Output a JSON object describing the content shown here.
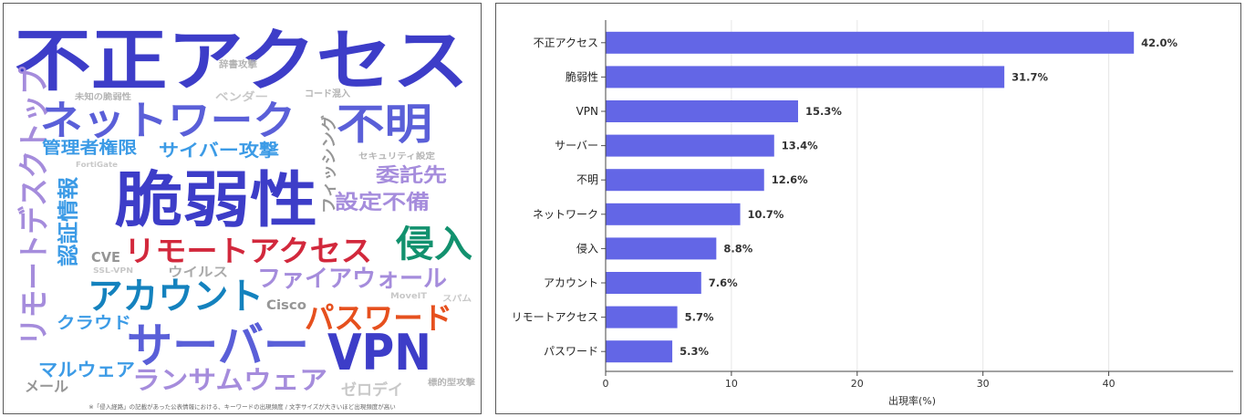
{
  "wordcloud": {
    "note": "※「侵入経路」の記載があった公表情報における、キーワードの出現頻度 / 文字サイズが大きいほど出現頻度が高い",
    "words": [
      {
        "text": "不正アクセス",
        "color": "#3d3dc8"
      },
      {
        "text": "ネットワーク",
        "color": "#5a5fd8"
      },
      {
        "text": "不明",
        "color": "#5a5fd8"
      },
      {
        "text": "脆弱性",
        "color": "#3d3dc8"
      },
      {
        "text": "リモートデスクトップ",
        "color": "#a58cdc"
      },
      {
        "text": "侵入",
        "color": "#12916e"
      },
      {
        "text": "リモートアクセス",
        "color": "#d2283c"
      },
      {
        "text": "アカウント",
        "color": "#1482be"
      },
      {
        "text": "サーバー",
        "color": "#5a5fd8"
      },
      {
        "text": "VPN",
        "color": "#3d3dc8"
      },
      {
        "text": "パスワード",
        "color": "#e6501e"
      },
      {
        "text": "ファイアウォール",
        "color": "#a58cdc"
      },
      {
        "text": "ランサムウェア",
        "color": "#a58cdc"
      },
      {
        "text": "マルウェア",
        "color": "#3c9be6"
      },
      {
        "text": "認証情報",
        "color": "#3c9be6"
      },
      {
        "text": "管理者権限",
        "color": "#3c9be6"
      },
      {
        "text": "サイバー攻撃",
        "color": "#3c9be6"
      },
      {
        "text": "フィッシング",
        "color": "#969696"
      },
      {
        "text": "委託先",
        "color": "#a58cdc"
      },
      {
        "text": "設定不備",
        "color": "#a58cdc"
      },
      {
        "text": "クラウド",
        "color": "#3c9be6"
      },
      {
        "text": "CVE",
        "color": "#969696"
      },
      {
        "text": "Cisco",
        "color": "#969696"
      },
      {
        "text": "ウイルス",
        "color": "#aaaaaa"
      },
      {
        "text": "メール",
        "color": "#969696"
      },
      {
        "text": "ゼロデイ",
        "color": "#c8c8c8"
      },
      {
        "text": "ベンダー",
        "color": "#c8c8c8"
      },
      {
        "text": "辞書攻撃",
        "color": "#b4b4b4"
      },
      {
        "text": "コード混入",
        "color": "#b4b4b4"
      },
      {
        "text": "未知の脆弱性",
        "color": "#b4b4b4"
      },
      {
        "text": "セキュリティ設定",
        "color": "#b4b4b4"
      },
      {
        "text": "FortiGate",
        "color": "#c8c8c8"
      },
      {
        "text": "SSL-VPN",
        "color": "#c8c8c8"
      },
      {
        "text": "MoveIT",
        "color": "#c8c8c8"
      },
      {
        "text": "スパム",
        "color": "#c8c8c8"
      },
      {
        "text": "標的型攻撃",
        "color": "#b4b4b4"
      }
    ]
  },
  "chart_data": {
    "type": "bar",
    "orientation": "horizontal",
    "categories": [
      "不正アクセス",
      "脆弱性",
      "VPN",
      "サーバー",
      "不明",
      "ネットワーク",
      "侵入",
      "アカウント",
      "リモートアクセス",
      "パスワード"
    ],
    "values": [
      42.0,
      31.7,
      15.3,
      13.4,
      12.6,
      10.7,
      8.8,
      7.6,
      5.7,
      5.3
    ],
    "value_labels": [
      "42.0%",
      "31.7%",
      "15.3%",
      "13.4%",
      "12.6%",
      "10.7%",
      "8.8%",
      "7.6%",
      "5.7%",
      "5.3%"
    ],
    "xlabel": "出現率(%)",
    "ylabel": "",
    "xlim": [
      0,
      50
    ],
    "xticks": [
      0,
      10,
      20,
      30,
      40
    ],
    "xtick_labels": [
      "0",
      "10",
      "20",
      "30",
      "40"
    ],
    "grid": true,
    "bar_color": "#6366e6"
  }
}
